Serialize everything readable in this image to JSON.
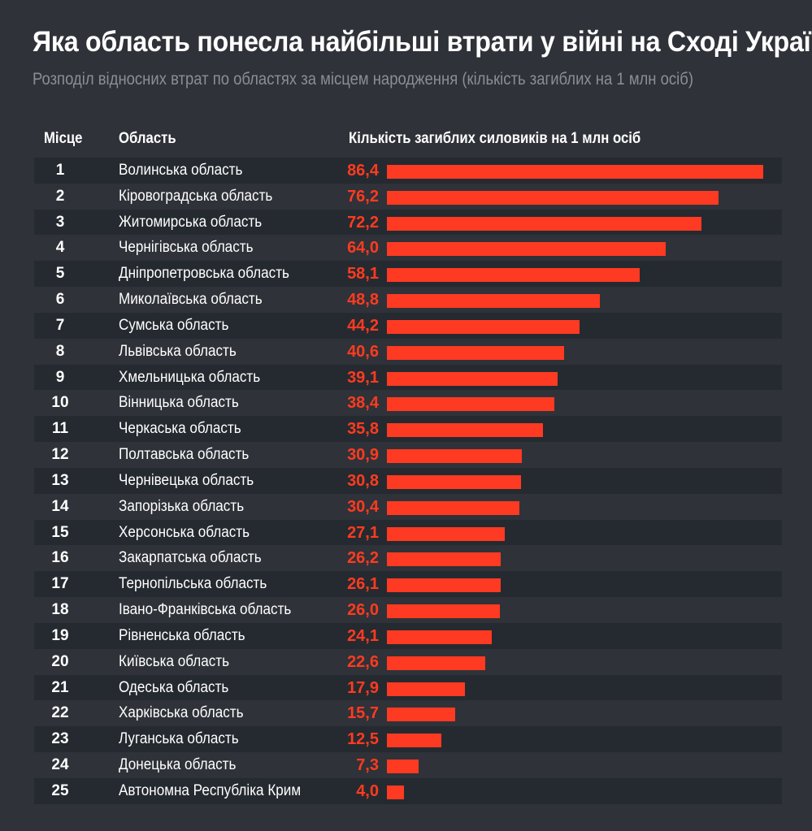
{
  "title": "Яка область понесла найбільші втрати у війні на Сході України",
  "subtitle": "Розподіл відносних втрат по областях за місцем народження (кількість загиблих на 1 млн осіб)",
  "columns": {
    "rank": "Місце",
    "region": "Область",
    "value": "Кількість загиблих силовиків на 1 млн осіб"
  },
  "colors": {
    "background": "#2f3238",
    "row_alt": "#252a30",
    "bar": "#ff3a22",
    "value_text": "#ff3b20",
    "subtitle_text": "#8a8e95"
  },
  "chart_data": {
    "type": "bar",
    "orientation": "horizontal",
    "title": "Яка область понесла найбільші втрати у війні на Сході України",
    "subtitle": "Розподіл відносних втрат по областях за місцем народження (кількість загиблих на 1 млн осіб)",
    "xlabel": "Кількість загиблих силовиків на 1 млн осіб",
    "ylabel": "Область",
    "xlim": [
      0,
      86.4
    ],
    "rows": [
      {
        "rank": "1",
        "region": "Волинська область",
        "label": "86,4",
        "value": 86.4
      },
      {
        "rank": "2",
        "region": "Кіровоградська область",
        "label": "76,2",
        "value": 76.2
      },
      {
        "rank": "3",
        "region": "Житомирська область",
        "label": "72,2",
        "value": 72.2
      },
      {
        "rank": "4",
        "region": "Чернігівська область",
        "label": "64,0",
        "value": 64.0
      },
      {
        "rank": "5",
        "region": "Дніпропетровська область",
        "label": "58,1",
        "value": 58.1
      },
      {
        "rank": "6",
        "region": "Миколаївська область",
        "label": "48,8",
        "value": 48.8
      },
      {
        "rank": "7",
        "region": "Сумська область",
        "label": "44,2",
        "value": 44.2
      },
      {
        "rank": "8",
        "region": "Львівська область",
        "label": "40,6",
        "value": 40.6
      },
      {
        "rank": "9",
        "region": "Хмельницька область",
        "label": "39,1",
        "value": 39.1
      },
      {
        "rank": "10",
        "region": "Вінницька область",
        "label": "38,4",
        "value": 38.4
      },
      {
        "rank": "11",
        "region": "Черкаська область",
        "label": "35,8",
        "value": 35.8
      },
      {
        "rank": "12",
        "region": "Полтавська область",
        "label": "30,9",
        "value": 30.9
      },
      {
        "rank": "13",
        "region": "Чернівецька область",
        "label": "30,8",
        "value": 30.8
      },
      {
        "rank": "14",
        "region": "Запорізька область",
        "label": "30,4",
        "value": 30.4
      },
      {
        "rank": "15",
        "region": "Херсонська область",
        "label": "27,1",
        "value": 27.1
      },
      {
        "rank": "16",
        "region": "Закарпатська область",
        "label": "26,2",
        "value": 26.2
      },
      {
        "rank": "17",
        "region": "Тернопільська область",
        "label": "26,1",
        "value": 26.1
      },
      {
        "rank": "18",
        "region": "Івано-Франківська область",
        "label": "26,0",
        "value": 26.0
      },
      {
        "rank": "19",
        "region": "Рівненська область",
        "label": "24,1",
        "value": 24.1
      },
      {
        "rank": "20",
        "region": "Київська область",
        "label": "22,6",
        "value": 22.6
      },
      {
        "rank": "21",
        "region": "Одеська область",
        "label": "17,9",
        "value": 17.9
      },
      {
        "rank": "22",
        "region": "Харківська область",
        "label": "15,7",
        "value": 15.7
      },
      {
        "rank": "23",
        "region": "Луганська область",
        "label": "12,5",
        "value": 12.5
      },
      {
        "rank": "24",
        "region": "Донецька область",
        "label": "7,3",
        "value": 7.3
      },
      {
        "rank": "25",
        "region": "Автономна Республіка Крим",
        "label": "4,0",
        "value": 4.0
      }
    ]
  }
}
